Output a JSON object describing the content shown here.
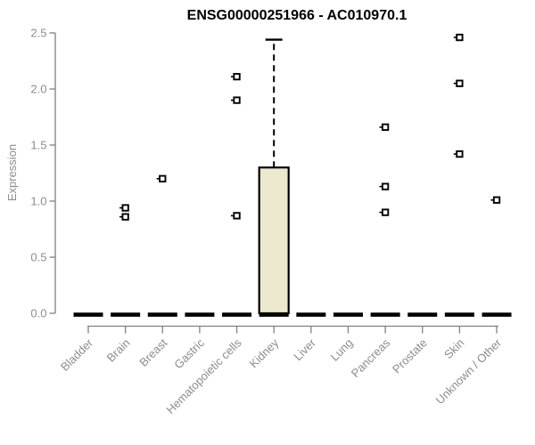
{
  "chart_data": {
    "type": "boxplot",
    "title": "ENSG00000251966 - AC010970.1",
    "ylabel": "Expression",
    "xlabel": "",
    "ylim": [
      0,
      2.5
    ],
    "yticks": [
      0.0,
      0.5,
      1.0,
      1.5,
      2.0,
      2.5
    ],
    "grid": "off",
    "legend": "none",
    "categories": [
      "Bladder",
      "Brain",
      "Breast",
      "Gastric",
      "Hematopoietic cells",
      "Kidney",
      "Liver",
      "Lung",
      "Pancreas",
      "Prostate",
      "Skin",
      "Unknown / Other"
    ],
    "groups": [
      {
        "category": "Bladder",
        "q1": 0,
        "median": 0,
        "q3": 0,
        "whisker_low": 0,
        "whisker_high": 0,
        "outliers": []
      },
      {
        "category": "Brain",
        "q1": 0,
        "median": 0,
        "q3": 0,
        "whisker_low": 0,
        "whisker_high": 0,
        "outliers": [
          0.94,
          0.86
        ]
      },
      {
        "category": "Breast",
        "q1": 0,
        "median": 0,
        "q3": 0,
        "whisker_low": 0,
        "whisker_high": 0,
        "outliers": [
          1.2
        ]
      },
      {
        "category": "Gastric",
        "q1": 0,
        "median": 0,
        "q3": 0,
        "whisker_low": 0,
        "whisker_high": 0,
        "outliers": []
      },
      {
        "category": "Hematopoietic cells",
        "q1": 0,
        "median": 0,
        "q3": 0,
        "whisker_low": 0,
        "whisker_high": 0,
        "outliers": [
          2.11,
          1.9,
          0.87
        ]
      },
      {
        "category": "Kidney",
        "q1": 0,
        "median": 0,
        "q3": 1.3,
        "whisker_low": 0,
        "whisker_high": 2.44,
        "outliers": []
      },
      {
        "category": "Liver",
        "q1": 0,
        "median": 0,
        "q3": 0,
        "whisker_low": 0,
        "whisker_high": 0,
        "outliers": []
      },
      {
        "category": "Lung",
        "q1": 0,
        "median": 0,
        "q3": 0,
        "whisker_low": 0,
        "whisker_high": 0,
        "outliers": []
      },
      {
        "category": "Pancreas",
        "q1": 0,
        "median": 0,
        "q3": 0,
        "whisker_low": 0,
        "whisker_high": 0,
        "outliers": [
          1.66,
          1.13,
          0.9
        ]
      },
      {
        "category": "Prostate",
        "q1": 0,
        "median": 0,
        "q3": 0,
        "whisker_low": 0,
        "whisker_high": 0,
        "outliers": []
      },
      {
        "category": "Skin",
        "q1": 0,
        "median": 0,
        "q3": 0,
        "whisker_low": 0,
        "whisker_high": 0,
        "outliers": [
          2.46,
          2.05,
          1.42
        ]
      },
      {
        "category": "Unknown / Other",
        "q1": 0,
        "median": 0,
        "q3": 0,
        "whisker_low": 0,
        "whisker_high": 0,
        "outliers": [
          1.01
        ]
      }
    ],
    "colors": {
      "box_fill": "#ECE8CD",
      "box_border": "#000000",
      "median": "#000000",
      "whisker": "#000000",
      "marker": "#000000",
      "marker_fill": "#FFFFFF",
      "axis_line": "#808080",
      "tick_text": "#8C8C8C",
      "title_text": "#000000",
      "background": "#FFFFFF"
    }
  }
}
